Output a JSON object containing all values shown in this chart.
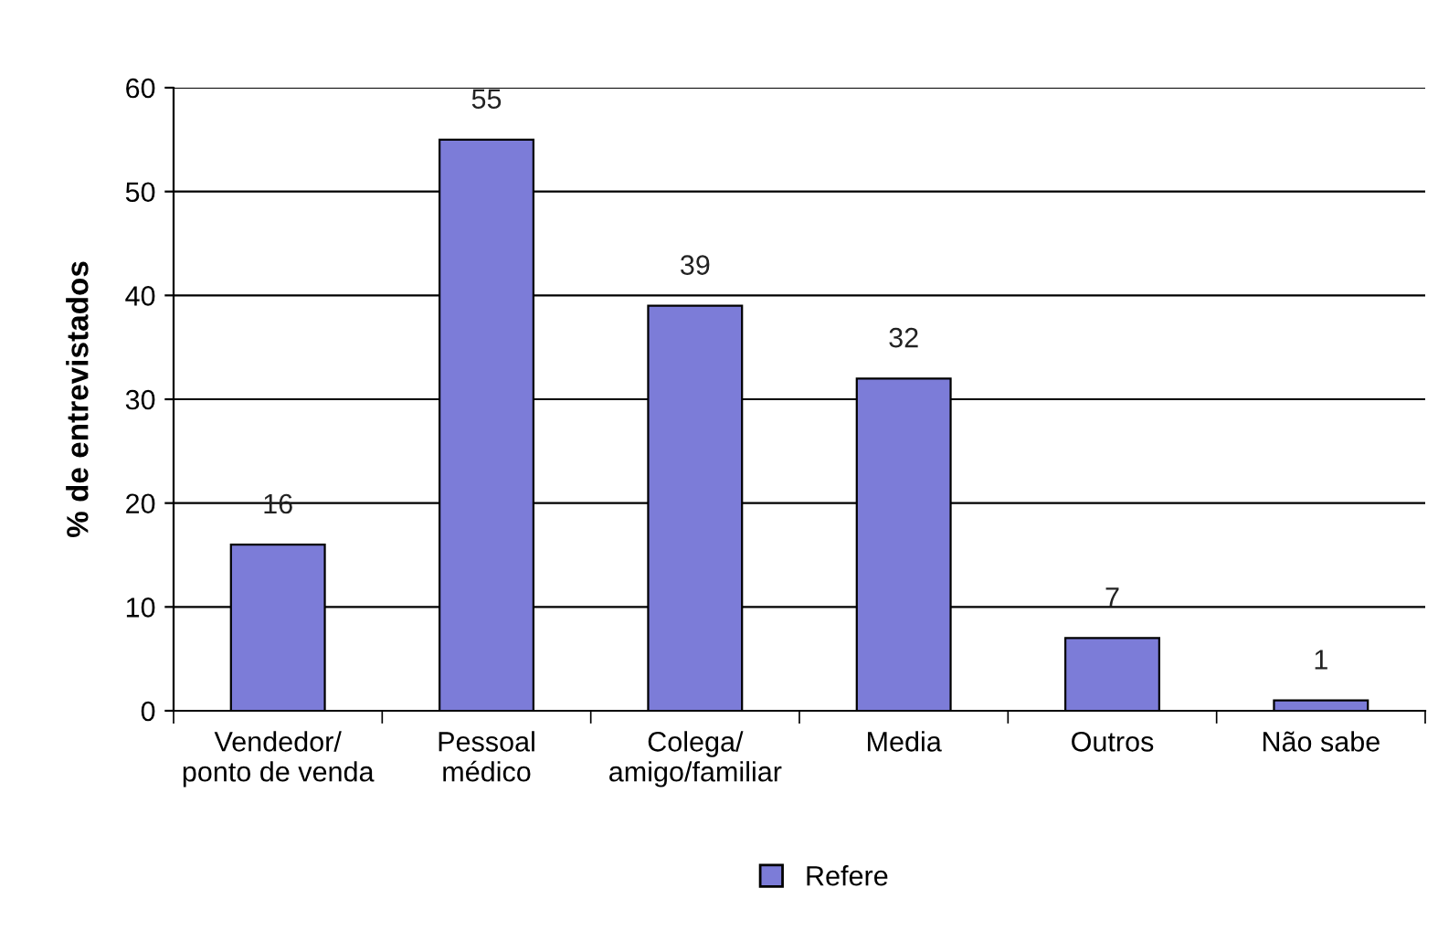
{
  "chart_data": {
    "type": "bar",
    "ylabel": "% de entrevistados",
    "categories": [
      "Vendedor/\nponto de venda",
      "Pessoal\nmédico",
      "Colega/\namigo/familiar",
      "Media",
      "Outros",
      "Não sabe"
    ],
    "series": [
      {
        "name": "Refere",
        "color": "#7c7cd8",
        "values": [
          16,
          55,
          39,
          32,
          7,
          1
        ]
      }
    ],
    "ylim": [
      0,
      60
    ],
    "yticks": [
      0,
      10,
      20,
      30,
      40,
      50,
      60
    ],
    "grid": "y",
    "legend": "bottom",
    "data_labels": true
  }
}
